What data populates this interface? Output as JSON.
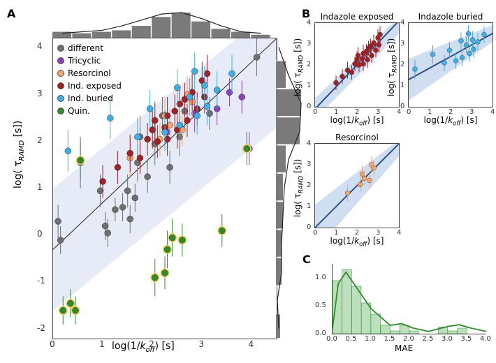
{
  "panelA": {
    "label": "A",
    "type": "scatter",
    "xlabel_html": "log(1/<i>k<sub>off</sub></i>) [s]",
    "ylabel_html": "log( τ<sub><i>RAMD</i></sub> [s])",
    "xlim": [
      0,
      4.5
    ],
    "ylim": [
      -2.2,
      4.2
    ],
    "xticks": [
      0,
      1,
      2,
      3,
      4
    ],
    "yticks": [
      -2,
      -1,
      0,
      1,
      2,
      3,
      4
    ],
    "fit_line": {
      "slope": 1.0,
      "intercept": -0.3,
      "color": "#222222",
      "width": 1
    },
    "ci_band": {
      "color": "#dbe3f3",
      "opacity": 0.7,
      "upper": [
        [
          0,
          1.0
        ],
        [
          4.5,
          4.9
        ]
      ],
      "lower": [
        [
          0,
          -1.6
        ],
        [
          4.5,
          2.3
        ]
      ]
    },
    "border_color": "#444444",
    "background": "#ffffff",
    "marker_size": 4.5,
    "error_width": 1,
    "series_order": [
      "different",
      "Tricyclic",
      "Resorcinol",
      "Ind. exposed",
      "Ind. buried",
      "Quin."
    ],
    "series": {
      "different": {
        "color": "#6f6f6f",
        "label": "different",
        "marker": "circle",
        "extra_fill": null
      },
      "Tricyclic": {
        "color": "#8e3fbf",
        "label": "Tricyclic",
        "marker": "circle",
        "extra_fill": null
      },
      "Resorcinol": {
        "color": "#f2a56a",
        "label": "Resorcinol",
        "marker": "circle",
        "extra_fill": null
      },
      "Ind. exposed": {
        "color": "#a42027",
        "label": "Ind. exposed",
        "marker": "circle",
        "extra_fill": null
      },
      "Ind. buried": {
        "color": "#3fb0e6",
        "label": "Ind. buried",
        "marker": "circle",
        "extra_fill": null
      },
      "Quin.": {
        "color": "#2e8b2e",
        "label": "Quin.",
        "marker": "circle",
        "extra_fill": "#e6d55a"
      }
    },
    "points": [
      {
        "s": "different",
        "x": 0.1,
        "y": 0.3,
        "ey": 0.35
      },
      {
        "s": "different",
        "x": 0.15,
        "y": -0.1,
        "ey": 0.3
      },
      {
        "s": "different",
        "x": 0.55,
        "y": 1.55,
        "ey": 0.55
      },
      {
        "s": "different",
        "x": 0.95,
        "y": 0.95,
        "ey": 0.35
      },
      {
        "s": "different",
        "x": 1.05,
        "y": 0.2,
        "ey": 0.3
      },
      {
        "s": "different",
        "x": 1.1,
        "y": 0.05,
        "ey": 0.3
      },
      {
        "s": "different",
        "x": 1.25,
        "y": 0.55,
        "ey": 0.25
      },
      {
        "s": "different",
        "x": 1.4,
        "y": 0.6,
        "ey": 0.3
      },
      {
        "s": "different",
        "x": 1.5,
        "y": 0.95,
        "ey": 0.35
      },
      {
        "s": "different",
        "x": 1.55,
        "y": 0.35,
        "ey": 0.3
      },
      {
        "s": "different",
        "x": 1.65,
        "y": 0.8,
        "ey": 0.3
      },
      {
        "s": "different",
        "x": 1.7,
        "y": 1.55,
        "ey": 0.4
      },
      {
        "s": "different",
        "x": 1.75,
        "y": 2.1,
        "ey": 0.45
      },
      {
        "s": "different",
        "x": 1.9,
        "y": 1.25,
        "ey": 0.35
      },
      {
        "s": "different",
        "x": 2.05,
        "y": 1.95,
        "ey": 0.45
      },
      {
        "s": "different",
        "x": 2.2,
        "y": 2.55,
        "ey": 0.4
      },
      {
        "s": "different",
        "x": 2.35,
        "y": 1.45,
        "ey": 0.35
      },
      {
        "s": "different",
        "x": 2.55,
        "y": 2.1,
        "ey": 0.4
      },
      {
        "s": "different",
        "x": 2.65,
        "y": 2.65,
        "ey": 0.35
      },
      {
        "s": "different",
        "x": 3.15,
        "y": 2.6,
        "ey": 0.35
      },
      {
        "s": "different",
        "x": 4.1,
        "y": 3.8,
        "ey": 0.4
      },
      {
        "s": "Tricyclic",
        "x": 2.3,
        "y": 2.2,
        "ey": 0.35
      },
      {
        "s": "Tricyclic",
        "x": 2.85,
        "y": 2.6,
        "ey": 0.4
      },
      {
        "s": "Tricyclic",
        "x": 3.3,
        "y": 2.7,
        "ey": 0.35
      },
      {
        "s": "Tricyclic",
        "x": 3.55,
        "y": 3.05,
        "ey": 0.3
      },
      {
        "s": "Tricyclic",
        "x": 3.8,
        "y": 2.95,
        "ey": 0.35
      },
      {
        "s": "Tricyclic",
        "x": 3.95,
        "y": 1.85,
        "ey": 0.35
      },
      {
        "s": "Resorcinol",
        "x": 1.55,
        "y": 1.65,
        "ey": 0.4
      },
      {
        "s": "Resorcinol",
        "x": 2.15,
        "y": 2.05,
        "ey": 0.35
      },
      {
        "s": "Resorcinol",
        "x": 2.25,
        "y": 2.55,
        "ey": 0.4
      },
      {
        "s": "Resorcinol",
        "x": 2.35,
        "y": 2.35,
        "ey": 0.35
      },
      {
        "s": "Resorcinol",
        "x": 2.6,
        "y": 2.25,
        "ey": 0.35
      },
      {
        "s": "Resorcinol",
        "x": 2.7,
        "y": 3.0,
        "ey": 0.4
      },
      {
        "s": "Resorcinol",
        "x": 2.8,
        "y": 2.85,
        "ey": 0.35
      },
      {
        "s": "Ind. exposed",
        "x": 1.0,
        "y": 1.15,
        "ey": 0.35
      },
      {
        "s": "Ind. exposed",
        "x": 1.3,
        "y": 1.45,
        "ey": 0.35
      },
      {
        "s": "Ind. exposed",
        "x": 1.55,
        "y": 1.75,
        "ey": 0.4
      },
      {
        "s": "Ind. exposed",
        "x": 1.75,
        "y": 1.65,
        "ey": 0.35
      },
      {
        "s": "Ind. exposed",
        "x": 1.9,
        "y": 2.05,
        "ey": 0.35
      },
      {
        "s": "Ind. exposed",
        "x": 2.0,
        "y": 2.25,
        "ey": 0.4
      },
      {
        "s": "Ind. exposed",
        "x": 2.05,
        "y": 2.45,
        "ey": 0.4
      },
      {
        "s": "Ind. exposed",
        "x": 2.1,
        "y": 2.0,
        "ey": 0.35
      },
      {
        "s": "Ind. exposed",
        "x": 2.25,
        "y": 2.3,
        "ey": 0.35
      },
      {
        "s": "Ind. exposed",
        "x": 2.3,
        "y": 2.55,
        "ey": 0.4
      },
      {
        "s": "Ind. exposed",
        "x": 2.3,
        "y": 2.05,
        "ey": 0.35
      },
      {
        "s": "Ind. exposed",
        "x": 2.45,
        "y": 2.65,
        "ey": 0.35
      },
      {
        "s": "Ind. exposed",
        "x": 2.5,
        "y": 2.25,
        "ey": 0.4
      },
      {
        "s": "Ind. exposed",
        "x": 2.55,
        "y": 2.8,
        "ey": 0.35
      },
      {
        "s": "Ind. exposed",
        "x": 2.65,
        "y": 2.9,
        "ey": 0.35
      },
      {
        "s": "Ind. exposed",
        "x": 2.7,
        "y": 2.45,
        "ey": 0.35
      },
      {
        "s": "Ind. exposed",
        "x": 2.8,
        "y": 3.05,
        "ey": 0.4
      },
      {
        "s": "Ind. exposed",
        "x": 2.9,
        "y": 2.7,
        "ey": 0.35
      },
      {
        "s": "Ind. exposed",
        "x": 3.0,
        "y": 3.3,
        "ey": 0.4
      },
      {
        "s": "Ind. exposed",
        "x": 3.05,
        "y": 2.95,
        "ey": 0.35
      },
      {
        "s": "Ind. exposed",
        "x": 3.1,
        "y": 3.45,
        "ey": 0.4
      },
      {
        "s": "Ind. buried",
        "x": 0.3,
        "y": 1.8,
        "ey": 0.45
      },
      {
        "s": "Ind. buried",
        "x": 1.15,
        "y": 2.5,
        "ey": 0.45
      },
      {
        "s": "Ind. buried",
        "x": 1.7,
        "y": 2.1,
        "ey": 0.4
      },
      {
        "s": "Ind. buried",
        "x": 1.95,
        "y": 2.7,
        "ey": 0.4
      },
      {
        "s": "Ind. buried",
        "x": 2.25,
        "y": 2.2,
        "ey": 0.4
      },
      {
        "s": "Ind. buried",
        "x": 2.5,
        "y": 3.15,
        "ey": 0.4
      },
      {
        "s": "Ind. buried",
        "x": 2.55,
        "y": 2.35,
        "ey": 0.4
      },
      {
        "s": "Ind. buried",
        "x": 2.75,
        "y": 2.95,
        "ey": 0.4
      },
      {
        "s": "Ind. buried",
        "x": 2.85,
        "y": 3.5,
        "ey": 0.4
      },
      {
        "s": "Ind. buried",
        "x": 2.9,
        "y": 2.55,
        "ey": 0.4
      },
      {
        "s": "Ind. buried",
        "x": 3.05,
        "y": 3.2,
        "ey": 0.4
      },
      {
        "s": "Ind. buried",
        "x": 3.1,
        "y": 2.75,
        "ey": 0.4
      },
      {
        "s": "Ind. buried",
        "x": 3.3,
        "y": 3.1,
        "ey": 0.4
      },
      {
        "s": "Ind. buried",
        "x": 3.6,
        "y": 3.45,
        "ey": 0.4
      },
      {
        "s": "Quin.",
        "x": 0.2,
        "y": -1.6,
        "ey": 0.3
      },
      {
        "s": "Quin.",
        "x": 0.35,
        "y": -1.45,
        "ey": 0.3
      },
      {
        "s": "Quin.",
        "x": 0.45,
        "y": -1.6,
        "ey": 0.3
      },
      {
        "s": "Quin.",
        "x": 0.55,
        "y": 1.6,
        "ey": 0.4
      },
      {
        "s": "Quin.",
        "x": 2.05,
        "y": -0.9,
        "ey": 0.4
      },
      {
        "s": "Quin.",
        "x": 2.25,
        "y": -0.8,
        "ey": 0.35
      },
      {
        "s": "Quin.",
        "x": 2.3,
        "y": -0.3,
        "ey": 0.4
      },
      {
        "s": "Quin.",
        "x": 2.4,
        "y": -0.05,
        "ey": 0.4
      },
      {
        "s": "Quin.",
        "x": 2.6,
        "y": -0.1,
        "ey": 0.35
      },
      {
        "s": "Quin.",
        "x": 3.4,
        "y": 0.1,
        "ey": 0.35
      },
      {
        "s": "Quin.",
        "x": 3.9,
        "y": 1.85,
        "ey": 0.35
      }
    ],
    "top_hist": {
      "xlim": [
        0,
        4.5
      ],
      "bins": [
        0.2,
        0.6,
        1.0,
        1.4,
        1.8,
        2.2,
        2.6,
        3.0,
        3.4,
        3.8,
        4.2
      ],
      "counts": [
        4,
        3,
        4,
        5,
        8,
        14,
        17,
        11,
        6,
        4,
        2
      ],
      "bar_color": "#7a7a7a",
      "kde_color": "#222222",
      "kde_vals": [
        3,
        4,
        5,
        8,
        12,
        16,
        17,
        13,
        8,
        4,
        3
      ]
    },
    "right_hist": {
      "ylim": [
        -2.2,
        4.2
      ],
      "bins": [
        -2.0,
        -1.4,
        -0.8,
        -0.2,
        0.4,
        1.0,
        1.6,
        2.2,
        2.8,
        3.4,
        4.0
      ],
      "counts": [
        3,
        0,
        4,
        4,
        5,
        5,
        7,
        17,
        18,
        7,
        1
      ],
      "bar_color": "#7a7a7a",
      "kde_color": "#222222",
      "kde_vals": [
        2,
        1,
        4,
        4,
        5,
        6,
        9,
        17,
        18,
        9,
        2
      ]
    }
  },
  "panelB": {
    "label": "B",
    "plots": [
      {
        "title": "Indazole exposed",
        "series_key": "Ind. exposed",
        "xlim": [
          0,
          4
        ],
        "ylim": [
          0,
          4
        ],
        "ticks": [
          0,
          1,
          2,
          3,
          4
        ],
        "fit": {
          "slope": 1.05,
          "intercept": -0.1,
          "color": "#2f4f8b",
          "width": 2
        },
        "ci": {
          "color": "#bcd0ec",
          "upper": [
            [
              0,
              0.4
            ],
            [
              4,
              4.3
            ]
          ],
          "lower": [
            [
              0,
              -0.6
            ],
            [
              4,
              3.5
            ]
          ]
        },
        "xlabel_html": "log(1/<i>k<sub>off</sub></i>) [s]",
        "ylabel_html": "log( τ<sub><i>RAMD</i></sub> [s])"
      },
      {
        "title": "Indazole buried",
        "series_key": "Ind. buried",
        "xlim": [
          0,
          4
        ],
        "ylim": [
          0,
          4
        ],
        "ticks": [
          0,
          1,
          2,
          3,
          4
        ],
        "fit": {
          "slope": 0.55,
          "intercept": 1.3,
          "color": "#2f4f8b",
          "width": 2
        },
        "ci": {
          "color": "#bcd0ec",
          "upper": [
            [
              0,
              2.3
            ],
            [
              4,
              3.9
            ]
          ],
          "lower": [
            [
              0,
              0.3
            ],
            [
              4,
              3.1
            ]
          ]
        },
        "xlabel_html": "log(1/<i>k<sub>off</sub></i>) [s]",
        "ylabel_html": "log( τ<sub><i>RAMD</i></sub> [s])"
      },
      {
        "title": "Resorcinol",
        "series_key": "Resorcinol",
        "xlim": [
          0,
          4
        ],
        "ylim": [
          0,
          4
        ],
        "ticks": [
          0,
          1,
          2,
          3,
          4
        ],
        "fit": {
          "slope": 1.0,
          "intercept": 0.0,
          "color": "#2f4f8b",
          "width": 2
        },
        "ci": {
          "color": "#bcd0ec",
          "upper": [
            [
              0,
              1.1
            ],
            [
              4,
              4.2
            ]
          ],
          "lower": [
            [
              0,
              -1.1
            ],
            [
              4,
              3.4
            ]
          ]
        },
        "xlabel_html": "log(1/<i>k<sub>off</sub></i>) [s]",
        "ylabel_html": "log( τ<sub><i>RAMD</i></sub> [s])"
      }
    ]
  },
  "panelC": {
    "label": "C",
    "type": "histogram",
    "xlabel": "MAE",
    "xlim": [
      0,
      4
    ],
    "ylim": [
      0,
      1.25
    ],
    "xticks": [
      0.0,
      0.5,
      1.0,
      1.5,
      2.0,
      2.5,
      3.0,
      3.5,
      4.0
    ],
    "yticks": [
      0.0,
      0.5,
      1.0
    ],
    "bar_color": "#9fd39f",
    "bar_alpha": 0.7,
    "edge_color": "#2e8b2e",
    "kde_color": "#2e8b2e",
    "bins": [
      0.125,
      0.375,
      0.625,
      0.875,
      1.125,
      1.375,
      1.625,
      1.875,
      2.125,
      2.375,
      2.625,
      2.875,
      3.125,
      3.375,
      3.625,
      3.875
    ],
    "counts": [
      0.95,
      1.15,
      0.85,
      0.55,
      0.35,
      0.15,
      0.05,
      0.15,
      0.05,
      0.0,
      0.0,
      0.12,
      0.05,
      0.1,
      0.0,
      0.0
    ],
    "kde": [
      [
        0,
        0.1
      ],
      [
        0.15,
        0.9
      ],
      [
        0.35,
        1.1
      ],
      [
        0.6,
        0.85
      ],
      [
        1.0,
        0.45
      ],
      [
        1.5,
        0.15
      ],
      [
        1.8,
        0.18
      ],
      [
        2.1,
        0.1
      ],
      [
        2.5,
        0.04
      ],
      [
        3.0,
        0.13
      ],
      [
        3.3,
        0.16
      ],
      [
        3.6,
        0.1
      ],
      [
        4.0,
        0.04
      ]
    ]
  },
  "fonts": {
    "base_family": "sans-serif",
    "label_pt": 13,
    "tick_pt": 11
  }
}
